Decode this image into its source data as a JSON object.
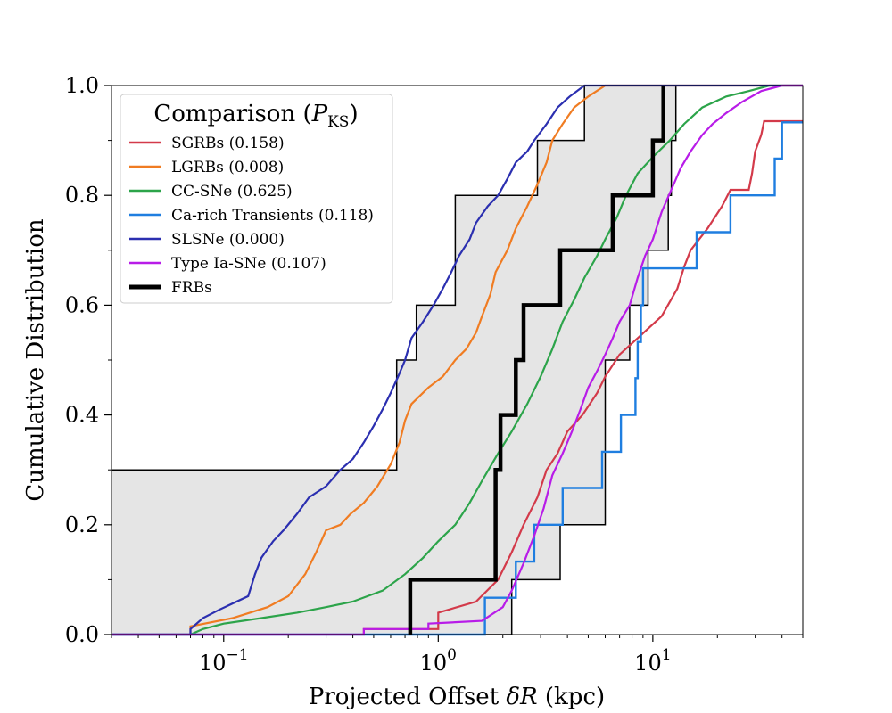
{
  "chart_data": {
    "type": "line",
    "subtype": "step-cdf",
    "xscale": "log",
    "xlim": [
      0.03,
      50
    ],
    "ylim": [
      0.0,
      1.0
    ],
    "xlabel": "Projected Offset δR (kpc)",
    "ylabel": "Cumulative Distribution",
    "x_tick_labels": [
      {
        "base": "10",
        "exp": "−1",
        "value": 0.1
      },
      {
        "base": "10",
        "exp": "0",
        "value": 1
      },
      {
        "base": "10",
        "exp": "1",
        "value": 10
      }
    ],
    "y_tick_labels": [
      "0.0",
      "0.2",
      "0.4",
      "0.6",
      "0.8",
      "1.0"
    ],
    "y_ticks": [
      0.0,
      0.2,
      0.4,
      0.6,
      0.8,
      1.0
    ],
    "legend": {
      "title_main": "Comparison (",
      "title_sym": "P",
      "title_sub": "KS",
      "title_close": ")",
      "placement": "upper-left"
    },
    "confidence_band": {
      "name": "FRB uncertainty band",
      "color": "#e5e5e5",
      "edge_color": "#000000",
      "left": [
        [
          0.03,
          0.3
        ],
        [
          0.64,
          0.3
        ],
        [
          0.64,
          0.5
        ],
        [
          0.79,
          0.5
        ],
        [
          0.79,
          0.6
        ],
        [
          1.2,
          0.6
        ],
        [
          1.2,
          0.8
        ],
        [
          2.9,
          0.8
        ],
        [
          2.9,
          0.9
        ],
        [
          4.8,
          0.9
        ],
        [
          4.8,
          1.0
        ]
      ],
      "right": [
        [
          0.03,
          0.0
        ],
        [
          2.2,
          0.0
        ],
        [
          2.2,
          0.1
        ],
        [
          3.7,
          0.1
        ],
        [
          3.7,
          0.2
        ],
        [
          6.0,
          0.2
        ],
        [
          6.0,
          0.5
        ],
        [
          7.8,
          0.5
        ],
        [
          7.8,
          0.6
        ],
        [
          9.5,
          0.6
        ],
        [
          9.5,
          0.7
        ],
        [
          11.8,
          0.7
        ],
        [
          11.8,
          0.8
        ],
        [
          12.2,
          0.8
        ],
        [
          12.2,
          0.9
        ],
        [
          12.8,
          0.9
        ],
        [
          12.8,
          1.0
        ]
      ]
    },
    "series": [
      {
        "name": "SGRBs (0.158)",
        "color": "#d33a4a",
        "width": 2.2,
        "points": [
          [
            0.03,
            0
          ],
          [
            0.45,
            0
          ],
          [
            0.45,
            0.01
          ],
          [
            1.0,
            0.01
          ],
          [
            1.0,
            0.04
          ],
          [
            1.5,
            0.06
          ],
          [
            1.9,
            0.1
          ],
          [
            2.2,
            0.15
          ],
          [
            2.5,
            0.2
          ],
          [
            2.9,
            0.25
          ],
          [
            3.2,
            0.3
          ],
          [
            3.6,
            0.33
          ],
          [
            4.0,
            0.37
          ],
          [
            4.7,
            0.4
          ],
          [
            5.5,
            0.44
          ],
          [
            6.0,
            0.47
          ],
          [
            7.0,
            0.51
          ],
          [
            8.5,
            0.54
          ],
          [
            11.0,
            0.58
          ],
          [
            13.0,
            0.63
          ],
          [
            14.0,
            0.67
          ],
          [
            15.0,
            0.7
          ],
          [
            18.0,
            0.74
          ],
          [
            21.0,
            0.78
          ],
          [
            23.0,
            0.81
          ],
          [
            28.0,
            0.81
          ],
          [
            29.0,
            0.84
          ],
          [
            30.0,
            0.88
          ],
          [
            32.0,
            0.91
          ],
          [
            33.0,
            0.935
          ],
          [
            50,
            0.935
          ]
        ]
      },
      {
        "name": "LGRBs (0.008)",
        "color": "#f07c22",
        "width": 2.2,
        "points": [
          [
            0.03,
            0
          ],
          [
            0.07,
            0
          ],
          [
            0.07,
            0.015
          ],
          [
            0.11,
            0.03
          ],
          [
            0.16,
            0.05
          ],
          [
            0.2,
            0.07
          ],
          [
            0.24,
            0.11
          ],
          [
            0.27,
            0.15
          ],
          [
            0.3,
            0.19
          ],
          [
            0.35,
            0.2
          ],
          [
            0.39,
            0.22
          ],
          [
            0.45,
            0.24
          ],
          [
            0.52,
            0.27
          ],
          [
            0.6,
            0.31
          ],
          [
            0.66,
            0.35
          ],
          [
            0.7,
            0.39
          ],
          [
            0.75,
            0.42
          ],
          [
            0.9,
            0.45
          ],
          [
            1.05,
            0.47
          ],
          [
            1.2,
            0.5
          ],
          [
            1.35,
            0.52
          ],
          [
            1.5,
            0.55
          ],
          [
            1.6,
            0.58
          ],
          [
            1.75,
            0.62
          ],
          [
            1.85,
            0.66
          ],
          [
            2.1,
            0.7
          ],
          [
            2.3,
            0.74
          ],
          [
            2.6,
            0.78
          ],
          [
            2.9,
            0.82
          ],
          [
            3.2,
            0.86
          ],
          [
            3.4,
            0.9
          ],
          [
            3.8,
            0.93
          ],
          [
            4.3,
            0.96
          ],
          [
            5.0,
            0.98
          ],
          [
            6.0,
            1.0
          ],
          [
            50,
            1.0
          ]
        ]
      },
      {
        "name": "CC-SNe (0.625)",
        "color": "#2ca44a",
        "width": 2.2,
        "points": [
          [
            0.03,
            0
          ],
          [
            0.07,
            0
          ],
          [
            0.08,
            0.01
          ],
          [
            0.1,
            0.02
          ],
          [
            0.15,
            0.03
          ],
          [
            0.22,
            0.04
          ],
          [
            0.3,
            0.05
          ],
          [
            0.4,
            0.06
          ],
          [
            0.55,
            0.08
          ],
          [
            0.7,
            0.11
          ],
          [
            0.85,
            0.14
          ],
          [
            1.0,
            0.17
          ],
          [
            1.2,
            0.2
          ],
          [
            1.4,
            0.24
          ],
          [
            1.6,
            0.28
          ],
          [
            1.9,
            0.33
          ],
          [
            2.2,
            0.37
          ],
          [
            2.6,
            0.42
          ],
          [
            3.0,
            0.47
          ],
          [
            3.4,
            0.52
          ],
          [
            3.8,
            0.57
          ],
          [
            4.3,
            0.61
          ],
          [
            4.8,
            0.65
          ],
          [
            5.5,
            0.69
          ],
          [
            6.0,
            0.72
          ],
          [
            6.8,
            0.76
          ],
          [
            7.5,
            0.8
          ],
          [
            8.5,
            0.84
          ],
          [
            10,
            0.87
          ],
          [
            12,
            0.9
          ],
          [
            14,
            0.93
          ],
          [
            17,
            0.96
          ],
          [
            22,
            0.98
          ],
          [
            28,
            0.99
          ],
          [
            35,
            1.0
          ],
          [
            50,
            1.0
          ]
        ]
      },
      {
        "name": "Ca-rich Transients (0.118)",
        "color": "#1f7ee0",
        "width": 2.4,
        "points": [
          [
            0.03,
            0
          ],
          [
            1.65,
            0
          ],
          [
            1.65,
            0.067
          ],
          [
            2.3,
            0.067
          ],
          [
            2.3,
            0.133
          ],
          [
            2.8,
            0.133
          ],
          [
            2.8,
            0.2
          ],
          [
            3.8,
            0.2
          ],
          [
            3.8,
            0.267
          ],
          [
            5.8,
            0.267
          ],
          [
            5.8,
            0.333
          ],
          [
            7.1,
            0.333
          ],
          [
            7.1,
            0.4
          ],
          [
            8.3,
            0.4
          ],
          [
            8.3,
            0.467
          ],
          [
            8.5,
            0.467
          ],
          [
            8.5,
            0.533
          ],
          [
            8.8,
            0.533
          ],
          [
            8.8,
            0.6
          ],
          [
            9.0,
            0.6
          ],
          [
            9.0,
            0.667
          ],
          [
            16.0,
            0.667
          ],
          [
            16.0,
            0.733
          ],
          [
            23.0,
            0.733
          ],
          [
            23.0,
            0.8
          ],
          [
            37.0,
            0.8
          ],
          [
            37.0,
            0.867
          ],
          [
            40.0,
            0.867
          ],
          [
            40.0,
            0.933
          ],
          [
            50,
            0.933
          ]
        ]
      },
      {
        "name": "SLSNe (0.000)",
        "color": "#2b2fb0",
        "width": 2.2,
        "points": [
          [
            0.03,
            0
          ],
          [
            0.07,
            0
          ],
          [
            0.07,
            0.01
          ],
          [
            0.08,
            0.03
          ],
          [
            0.095,
            0.045
          ],
          [
            0.13,
            0.07
          ],
          [
            0.14,
            0.11
          ],
          [
            0.15,
            0.14
          ],
          [
            0.17,
            0.17
          ],
          [
            0.19,
            0.19
          ],
          [
            0.22,
            0.22
          ],
          [
            0.25,
            0.25
          ],
          [
            0.3,
            0.27
          ],
          [
            0.35,
            0.3
          ],
          [
            0.4,
            0.32
          ],
          [
            0.45,
            0.35
          ],
          [
            0.5,
            0.38
          ],
          [
            0.55,
            0.41
          ],
          [
            0.6,
            0.44
          ],
          [
            0.65,
            0.47
          ],
          [
            0.7,
            0.5
          ],
          [
            0.75,
            0.54
          ],
          [
            0.85,
            0.57
          ],
          [
            0.95,
            0.6
          ],
          [
            1.05,
            0.63
          ],
          [
            1.15,
            0.66
          ],
          [
            1.25,
            0.69
          ],
          [
            1.4,
            0.72
          ],
          [
            1.5,
            0.75
          ],
          [
            1.7,
            0.78
          ],
          [
            1.9,
            0.8
          ],
          [
            2.1,
            0.83
          ],
          [
            2.3,
            0.86
          ],
          [
            2.6,
            0.88
          ],
          [
            2.8,
            0.9
          ],
          [
            3.2,
            0.93
          ],
          [
            3.6,
            0.96
          ],
          [
            4.1,
            0.98
          ],
          [
            4.8,
            1.0
          ],
          [
            50,
            1.0
          ]
        ]
      },
      {
        "name": "Type Ia-SNe (0.107)",
        "color": "#b81ce8",
        "width": 2.2,
        "points": [
          [
            0.03,
            0
          ],
          [
            0.45,
            0
          ],
          [
            0.45,
            0.01
          ],
          [
            0.9,
            0.01
          ],
          [
            0.9,
            0.02
          ],
          [
            1.6,
            0.025
          ],
          [
            2.0,
            0.05
          ],
          [
            2.2,
            0.08
          ],
          [
            2.5,
            0.13
          ],
          [
            2.8,
            0.18
          ],
          [
            3.1,
            0.23
          ],
          [
            3.4,
            0.29
          ],
          [
            3.8,
            0.33
          ],
          [
            4.2,
            0.37
          ],
          [
            4.6,
            0.41
          ],
          [
            5.0,
            0.45
          ],
          [
            5.5,
            0.48
          ],
          [
            6.0,
            0.51
          ],
          [
            6.5,
            0.54
          ],
          [
            7.0,
            0.57
          ],
          [
            7.8,
            0.6
          ],
          [
            8.5,
            0.65
          ],
          [
            9.2,
            0.69
          ],
          [
            10.0,
            0.72
          ],
          [
            11.0,
            0.77
          ],
          [
            12.5,
            0.82
          ],
          [
            13.5,
            0.85
          ],
          [
            15.0,
            0.88
          ],
          [
            17.0,
            0.91
          ],
          [
            19.0,
            0.93
          ],
          [
            22.0,
            0.95
          ],
          [
            26.0,
            0.97
          ],
          [
            32.0,
            0.99
          ],
          [
            40.0,
            1.0
          ],
          [
            50,
            1.0
          ]
        ]
      },
      {
        "name": "FRBs",
        "color": "#000000",
        "width": 4.5,
        "points": [
          [
            0.74,
            0.0
          ],
          [
            0.74,
            0.1
          ],
          [
            1.85,
            0.1
          ],
          [
            1.85,
            0.3
          ],
          [
            1.95,
            0.3
          ],
          [
            1.95,
            0.4
          ],
          [
            2.3,
            0.4
          ],
          [
            2.3,
            0.5
          ],
          [
            2.5,
            0.5
          ],
          [
            2.5,
            0.6
          ],
          [
            3.7,
            0.6
          ],
          [
            3.7,
            0.7
          ],
          [
            6.5,
            0.7
          ],
          [
            6.5,
            0.8
          ],
          [
            10.0,
            0.8
          ],
          [
            10.0,
            0.9
          ],
          [
            11.2,
            0.9
          ],
          [
            11.2,
            1.0
          ]
        ]
      }
    ]
  }
}
